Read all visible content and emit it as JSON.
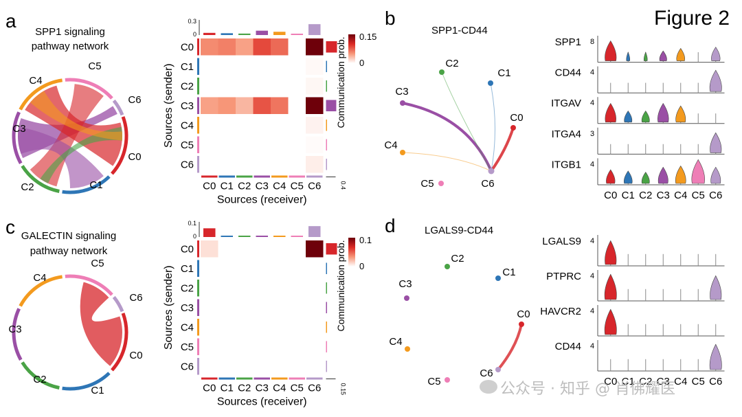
{
  "figure_title": "Figure 2",
  "panel_labels": {
    "a": "a",
    "b": "b",
    "c": "c",
    "d": "d"
  },
  "cluster_colors": {
    "C0": "#d7262b",
    "C1": "#2e76b6",
    "C2": "#4aa346",
    "C3": "#9a4fa5",
    "C4": "#f39a1e",
    "C5": "#ee7eb6",
    "C6": "#b59ac9"
  },
  "panel_a": {
    "title_line1": "SPP1 signaling",
    "title_line2": "pathway network",
    "clusters": [
      "C0",
      "C1",
      "C2",
      "C3",
      "C4",
      "C5",
      "C6"
    ]
  },
  "panel_c": {
    "title_line1": "GALECTIN signaling",
    "title_line2": "pathway network",
    "clusters": [
      "C0",
      "C1",
      "C2",
      "C3",
      "C4",
      "C5",
      "C6"
    ]
  },
  "panel_b_title": "SPP1-CD44",
  "panel_d_title": "LGALS9-CD44",
  "watermark": "公众号 · 知乎 @ 肖佛耀医",
  "chart_data": [
    {
      "type": "heatmap",
      "id": "spp1_heatmap",
      "ylabel": "Sources (sender)",
      "xlabel": "Sources (receiver)",
      "rows": [
        "C0",
        "C1",
        "C2",
        "C3",
        "C4",
        "C5",
        "C6"
      ],
      "cols": [
        "C0",
        "C1",
        "C2",
        "C3",
        "C4",
        "C5",
        "C6"
      ],
      "values": [
        [
          0.055,
          0.06,
          0.045,
          0.085,
          0.07,
          0,
          0.15
        ],
        [
          0,
          0,
          0,
          0,
          0,
          0,
          0.003
        ],
        [
          0,
          0,
          0,
          0,
          0,
          0,
          0.004
        ],
        [
          0.045,
          0.05,
          0.035,
          0.08,
          0.065,
          0,
          0.16
        ],
        [
          0,
          0,
          0,
          0,
          0,
          0,
          0.006
        ],
        [
          0,
          0,
          0,
          0,
          0,
          0,
          0.002
        ],
        [
          0,
          0,
          0,
          0,
          0,
          0,
          0.008
        ]
      ],
      "top_bar_ticks": [
        "0",
        "0.3"
      ],
      "top_bar_values": [
        0.06,
        0.05,
        0.04,
        0.12,
        0.09,
        0.01,
        0.3
      ],
      "side_bar_values": [
        0.3,
        0.005,
        0.005,
        0.28,
        0.01,
        0.003,
        0.01
      ],
      "side_axis_label": "0.4",
      "colorbar_label": "Communication prob.",
      "colorbar_ticks": [
        "0.15",
        "0"
      ],
      "colorbar_range": [
        0,
        0.15
      ]
    },
    {
      "type": "heatmap",
      "id": "galectin_heatmap",
      "ylabel": "Sources (sender)",
      "xlabel": "Sources (receiver)",
      "rows": [
        "C0",
        "C1",
        "C2",
        "C3",
        "C4",
        "C5",
        "C6"
      ],
      "cols": [
        "C0",
        "C1",
        "C2",
        "C3",
        "C4",
        "C5",
        "C6"
      ],
      "values": [
        [
          0.01,
          0,
          0,
          0,
          0,
          0,
          0.1
        ],
        [
          0,
          0,
          0,
          0,
          0,
          0,
          0
        ],
        [
          0,
          0,
          0,
          0,
          0,
          0,
          0
        ],
        [
          0,
          0,
          0,
          0,
          0,
          0,
          0
        ],
        [
          0,
          0,
          0,
          0,
          0,
          0,
          0
        ],
        [
          0,
          0,
          0,
          0,
          0,
          0,
          0
        ],
        [
          0,
          0,
          0,
          0,
          0,
          0,
          0
        ]
      ],
      "top_bar_ticks": [
        "0",
        "0.1"
      ],
      "top_bar_values": [
        0.08,
        0.005,
        0.005,
        0.005,
        0.005,
        0.005,
        0.1
      ],
      "side_bar_values": [
        0.15,
        0,
        0,
        0,
        0,
        0,
        0
      ],
      "side_axis_label": "0.15",
      "colorbar_label": "Communication prob.",
      "colorbar_ticks": [
        "0.1",
        "0"
      ],
      "colorbar_range": [
        0,
        0.1
      ]
    },
    {
      "type": "violin",
      "id": "spp1_violin",
      "genes": [
        {
          "name": "SPP1",
          "ymax": "8",
          "levels": [
            0.85,
            0.1,
            0.1,
            0.45,
            0.55,
            0.05,
            0.6
          ]
        },
        {
          "name": "CD44",
          "ymax": "4",
          "levels": [
            0.05,
            0.05,
            0.05,
            0.05,
            0.05,
            0.05,
            0.9
          ]
        },
        {
          "name": "ITGAV",
          "ymax": "4",
          "levels": [
            0.8,
            0.5,
            0.5,
            0.8,
            0.7,
            0.05,
            0.05
          ]
        },
        {
          "name": "ITGA4",
          "ymax": "3",
          "levels": [
            0.05,
            0.05,
            0.05,
            0.05,
            0.05,
            0.05,
            0.85
          ]
        },
        {
          "name": "ITGB1",
          "ymax": "4",
          "levels": [
            0.6,
            0.55,
            0.5,
            0.7,
            0.75,
            1.0,
            0.7
          ]
        }
      ],
      "clusters": [
        "C0",
        "C1",
        "C2",
        "C3",
        "C4",
        "C5",
        "C6"
      ]
    },
    {
      "type": "violin",
      "id": "lgals9_violin",
      "genes": [
        {
          "name": "LGALS9",
          "ymax": "4",
          "levels": [
            0.85,
            0.05,
            0.05,
            0.05,
            0.05,
            0.05,
            0.05
          ]
        },
        {
          "name": "PTPRC",
          "ymax": "4",
          "levels": [
            0.9,
            0.05,
            0.05,
            0.05,
            0.05,
            0.05,
            0.85
          ]
        },
        {
          "name": "HAVCR2",
          "ymax": "4",
          "levels": [
            0.9,
            0.05,
            0.05,
            0.05,
            0.05,
            0.05,
            0.05
          ]
        },
        {
          "name": "CD44",
          "ymax": "4",
          "levels": [
            0.05,
            0.05,
            0.05,
            0.05,
            0.05,
            0.05,
            0.9
          ]
        }
      ],
      "clusters": [
        "C0",
        "C1",
        "C2",
        "C3",
        "C4",
        "C5",
        "C6"
      ]
    }
  ]
}
